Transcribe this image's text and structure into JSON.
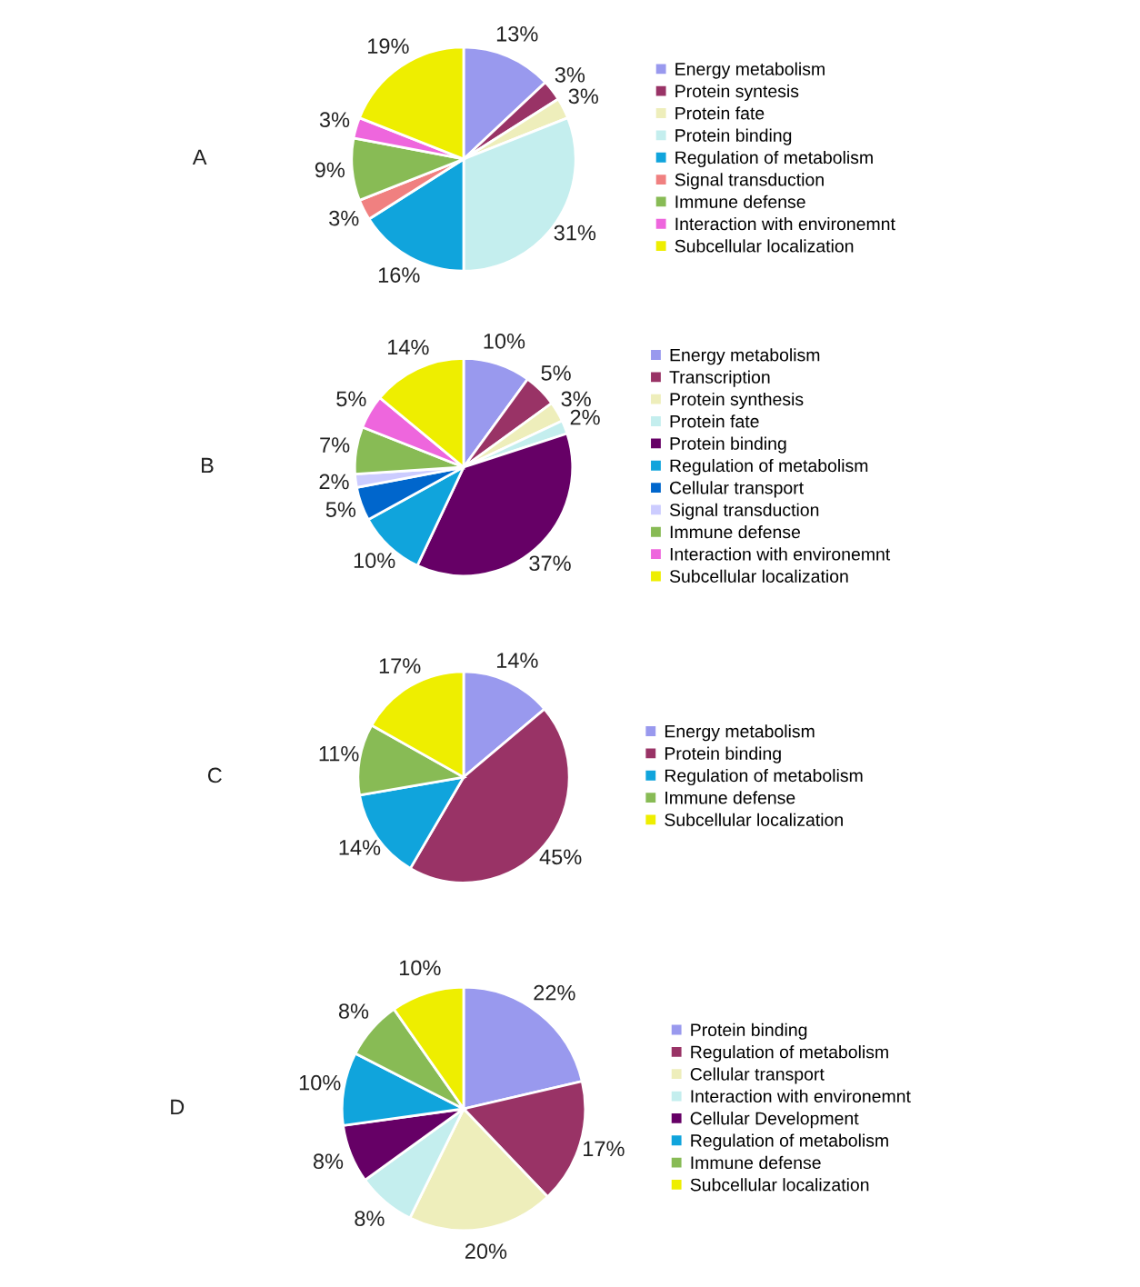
{
  "chart_data": [
    {
      "type": "pie",
      "title": "A",
      "categories": [
        "Energy metabolism",
        "Protein syntesis",
        "Protein fate",
        "Protein binding",
        "Regulation of metabolism",
        "Signal transduction",
        "Immune defense",
        "Interaction with environemnt",
        "Subcellular localization"
      ],
      "values": [
        13,
        3,
        3,
        31,
        16,
        3,
        9,
        3,
        19
      ],
      "value_labels": [
        "13%",
        "3%",
        "3%",
        "31%",
        "16%",
        "3%",
        "9%",
        "3%",
        "19%"
      ],
      "colors": [
        "#9999ee",
        "#993366",
        "#eeeebb",
        "#c4eeee",
        "#10a4dc",
        "#f08080",
        "#88bb55",
        "#ee66dd",
        "#eeee00"
      ],
      "legend": "right"
    },
    {
      "type": "pie",
      "title": "B",
      "categories": [
        "Energy metabolism",
        "Transcription",
        "Protein synthesis",
        "Protein fate",
        "Protein binding",
        "Regulation of metabolism",
        "Cellular transport",
        "Signal transduction",
        "Immune defense",
        "Interaction with environemnt",
        "Subcellular localization"
      ],
      "values": [
        10,
        5,
        3,
        2,
        37,
        10,
        5,
        2,
        7,
        5,
        14
      ],
      "value_labels": [
        "10%",
        "5%",
        "3%",
        "2%",
        "37%",
        "10%",
        "5%",
        "2%",
        "7%",
        "5%",
        "14%"
      ],
      "colors": [
        "#9999ee",
        "#993366",
        "#eeeebb",
        "#c4eeee",
        "#660066",
        "#10a4dc",
        "#0066cc",
        "#ccccff",
        "#88bb55",
        "#ee66dd",
        "#eeee00"
      ],
      "legend": "right"
    },
    {
      "type": "pie",
      "title": "C",
      "categories": [
        "Energy metabolism",
        "Protein binding",
        "Regulation of metabolism",
        "Immune defense",
        "Subcellular localization"
      ],
      "values": [
        14,
        45,
        14,
        11,
        17
      ],
      "value_labels": [
        "14%",
        "45%",
        "14%",
        "11%",
        "17%"
      ],
      "colors": [
        "#9999ee",
        "#993366",
        "#10a4dc",
        "#88bb55",
        "#eeee00"
      ],
      "legend": "right"
    },
    {
      "type": "pie",
      "title": "D",
      "categories": [
        "Protein binding",
        "Regulation of metabolism",
        "Cellular transport",
        "Interaction with environemnt",
        "Cellular Development",
        "Regulation of metabolism",
        "Immune defense",
        "Subcellular localization"
      ],
      "values": [
        22,
        17,
        20,
        8,
        8,
        10,
        8,
        10
      ],
      "value_labels": [
        "22%",
        "17%",
        "20%",
        "8%",
        "8%",
        "10%",
        "8%",
        "10%"
      ],
      "colors": [
        "#9999ee",
        "#993366",
        "#eeeebb",
        "#c4eeee",
        "#660066",
        "#10a4dc",
        "#88bb55",
        "#eeee00"
      ],
      "legend": "right"
    }
  ]
}
